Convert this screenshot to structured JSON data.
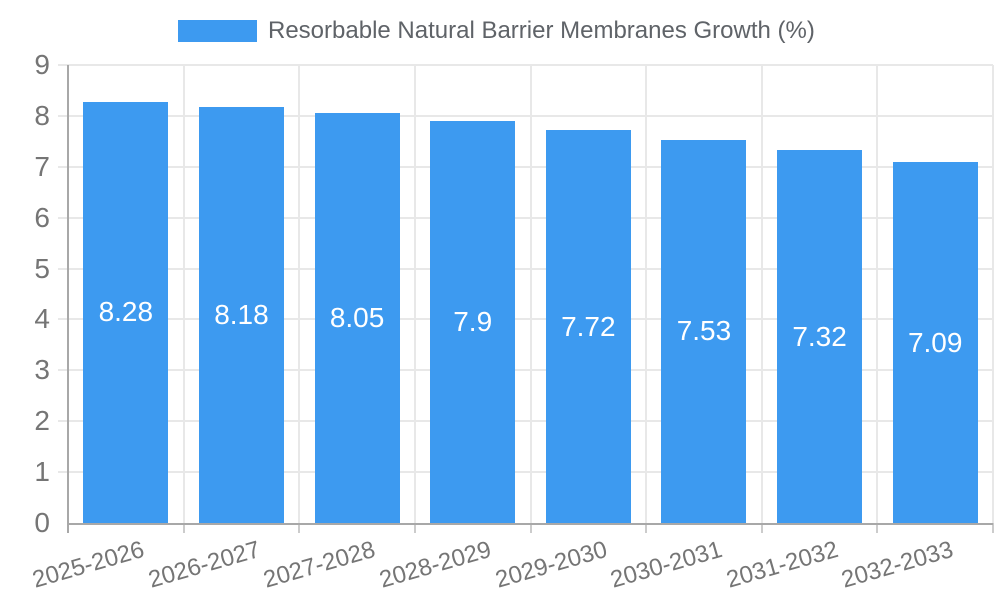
{
  "chart_data": {
    "type": "bar",
    "title": "",
    "legend": {
      "label": "Resorbable Natural Barrier Membranes Growth (%)",
      "position": "top"
    },
    "categories": [
      "2025-2026",
      "2026-2027",
      "2027-2028",
      "2028-2029",
      "2029-2030",
      "2030-2031",
      "2031-2032",
      "2032-2033"
    ],
    "series": [
      {
        "name": "Resorbable Natural Barrier Membranes Growth (%)",
        "values": [
          8.28,
          8.18,
          8.05,
          7.9,
          7.72,
          7.53,
          7.32,
          7.09
        ]
      }
    ],
    "value_labels": [
      "8.28",
      "8.18",
      "8.05",
      "7.9",
      "7.72",
      "7.53",
      "7.32",
      "7.09"
    ],
    "xlabel": "",
    "ylabel": "",
    "ylim": [
      0,
      9
    ],
    "yticks": [
      0,
      1,
      2,
      3,
      4,
      5,
      6,
      7,
      8,
      9
    ],
    "grid": true,
    "bar_labels_inside": true,
    "colors": {
      "bar": "#3D9AF0",
      "grid": "#e8e8e8",
      "axis": "#a8a8a8",
      "tick": "#cccccc",
      "axis_label": "#757575",
      "value_label": "#ffffff",
      "legend_text": "#5f6368",
      "background": "#ffffff"
    }
  }
}
